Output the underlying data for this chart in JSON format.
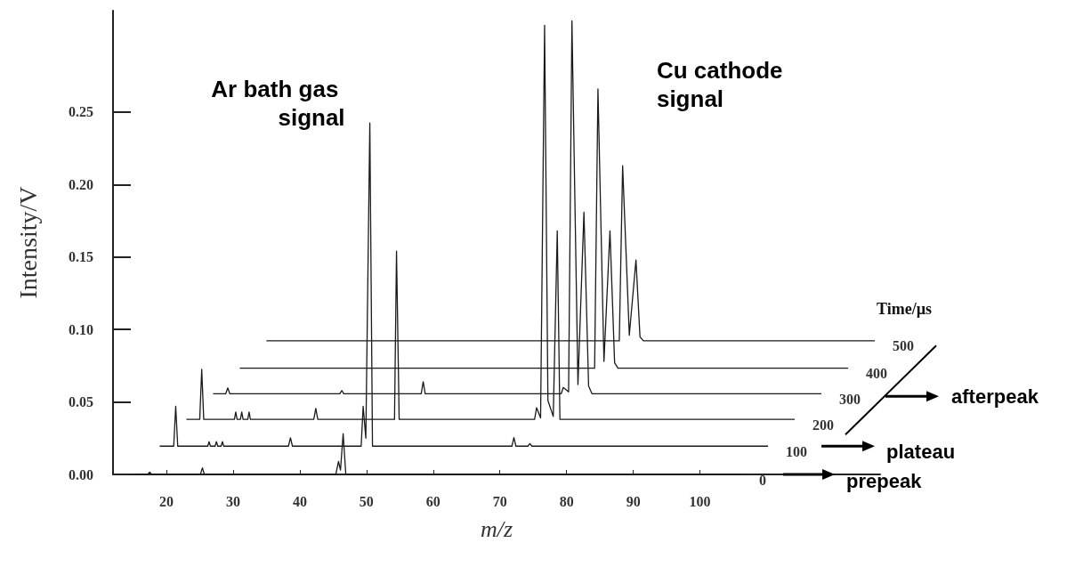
{
  "chart_data": {
    "type": "line",
    "xlabel": "m/z",
    "ylabel": "Intensity/V",
    "legend_title": "Time/µs",
    "marker": "none",
    "xlim": [
      12,
      127
    ],
    "xticks": [
      20,
      30,
      40,
      50,
      60,
      70,
      80,
      90,
      100
    ],
    "ylim": [
      0,
      0.32
    ],
    "yticks": [
      {
        "value": 0,
        "label": "0.00"
      },
      {
        "value": 0.05,
        "label": "0.05"
      },
      {
        "value": 0.1,
        "label": "0.10"
      },
      {
        "value": 0.15,
        "label": "0.15"
      },
      {
        "value": 0.2,
        "label": "0.20"
      },
      {
        "value": 0.25,
        "label": "0.25"
      }
    ],
    "series": [
      {
        "name": "0",
        "color": "#1a1a1a",
        "x": [
          15.1,
          17.2,
          17.5,
          17.8,
          25.1,
          25.4,
          25.7,
          45.4,
          45.8,
          46.1,
          46.5,
          46.9,
          106.2
        ],
        "values": [
          0,
          0,
          0.0016,
          0,
          0,
          0.0045,
          0,
          0,
          0.0089,
          0.003,
          0.028,
          0,
          0
        ]
      },
      {
        "name": "100",
        "color": "#1a1a1a",
        "x": [
          19.0,
          21.1,
          21.4,
          21.7,
          26.2,
          26.4,
          26.6,
          27.3,
          27.5,
          27.7,
          28.2,
          28.4,
          28.6,
          38.3,
          38.6,
          38.9,
          49.2,
          49.5,
          49.9,
          50.5,
          50.9,
          71.8,
          72.1,
          72.4,
          74.2,
          74.5,
          74.8,
          110.2
        ],
        "values": [
          0.0195,
          0.0195,
          0.047,
          0.0195,
          0.0195,
          0.0226,
          0.0195,
          0.0195,
          0.0226,
          0.0195,
          0.0195,
          0.0226,
          0.0195,
          0.0195,
          0.0252,
          0.0195,
          0.0195,
          0.047,
          0.025,
          0.2425,
          0.0195,
          0.0195,
          0.0254,
          0.0195,
          0.0195,
          0.0213,
          0.0195,
          0.0195
        ]
      },
      {
        "name": "200",
        "color": "#1a1a1a",
        "x": [
          23.0,
          25.0,
          25.3,
          25.6,
          30.2,
          30.4,
          30.6,
          31.1,
          31.3,
          31.5,
          32.2,
          32.4,
          32.6,
          42.1,
          42.4,
          42.7,
          54.2,
          54.5,
          54.9,
          75.2,
          75.5,
          76.1,
          76.7,
          77.2,
          78.0,
          78.6,
          79.0,
          114.2
        ],
        "values": [
          0.038,
          0.038,
          0.0725,
          0.038,
          0.038,
          0.043,
          0.038,
          0.038,
          0.043,
          0.038,
          0.038,
          0.043,
          0.038,
          0.038,
          0.0455,
          0.038,
          0.038,
          0.154,
          0.038,
          0.038,
          0.046,
          0.039,
          0.31,
          0.051,
          0.04,
          0.168,
          0.038,
          0.038
        ]
      },
      {
        "name": "300",
        "color": "#1a1a1a",
        "x": [
          27.0,
          28.9,
          29.2,
          29.5,
          46.0,
          46.3,
          46.6,
          58.2,
          58.5,
          58.8,
          79.2,
          79.5,
          80.3,
          80.8,
          81.7,
          82.6,
          83.3,
          83.8,
          118.2
        ],
        "values": [
          0.0557,
          0.0557,
          0.0597,
          0.0557,
          0.0557,
          0.0579,
          0.0557,
          0.0557,
          0.064,
          0.0557,
          0.0557,
          0.06,
          0.057,
          0.313,
          0.062,
          0.181,
          0.061,
          0.0557,
          0.0557
        ]
      },
      {
        "name": "400",
        "color": "#1a1a1a",
        "x": [
          31.0,
          84.2,
          84.7,
          85.6,
          86.5,
          87.2,
          87.7,
          122.2
        ],
        "values": [
          0.0733,
          0.0733,
          0.266,
          0.078,
          0.168,
          0.077,
          0.0733,
          0.0733
        ]
      },
      {
        "name": "500",
        "color": "#1a1a1a",
        "x": [
          35.0,
          87.9,
          88.4,
          89.4,
          90.4,
          91.0,
          91.5,
          126.2
        ],
        "values": [
          0.0922,
          0.0922,
          0.213,
          0.096,
          0.148,
          0.095,
          0.0922,
          0.0922
        ]
      }
    ],
    "annotations": [
      {
        "text": "Ar bath gas signal",
        "x": 50.5,
        "y": 0.2425
      },
      {
        "text": "Cu cathode signal",
        "x": 84.7,
        "y": 0.266
      },
      "prepeak",
      "plateau",
      "afterpeak"
    ]
  }
}
